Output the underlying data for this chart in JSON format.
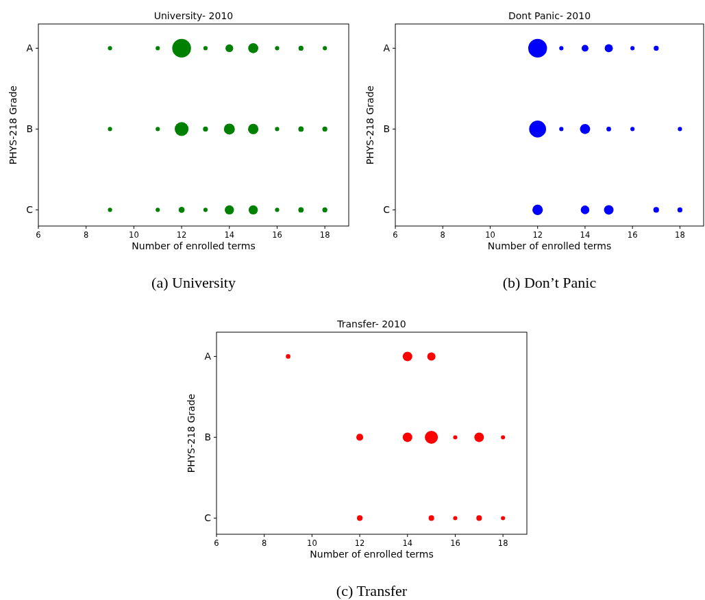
{
  "chart_data": [
    {
      "type": "bubble",
      "orientation": "horizontal",
      "title": "University- 2010",
      "xlabel": "Number of enrolled terms",
      "ylabel": "PHYS-218 Grade",
      "annotations": [
        "(a)  University"
      ],
      "xlim": [
        6,
        19
      ],
      "xticks": [
        6,
        8,
        10,
        12,
        14,
        16,
        18
      ],
      "categories": [
        "A",
        "B",
        "C"
      ],
      "series": [
        {
          "color": "#008000",
          "values": [
            9,
            9,
            9
          ],
          "sizes": [
            0.05,
            0.05,
            0.05
          ]
        },
        {
          "color": "#008000",
          "values": [
            11,
            11,
            11
          ],
          "sizes": [
            0.05,
            0.05,
            0.05
          ]
        },
        {
          "color": "#008000",
          "values": [
            12,
            12,
            12
          ],
          "sizes": [
            1,
            0.54,
            0.1
          ]
        },
        {
          "color": "#008000",
          "values": [
            13,
            13,
            13
          ],
          "sizes": [
            0.05,
            0.07,
            0.05
          ]
        },
        {
          "color": "#008000",
          "values": [
            14,
            14,
            14
          ],
          "sizes": [
            0.17,
            0.34,
            0.24
          ]
        },
        {
          "color": "#008000",
          "values": [
            15,
            15,
            15
          ],
          "sizes": [
            0.29,
            0.31,
            0.24
          ]
        },
        {
          "color": "#008000",
          "values": [
            16,
            16,
            16
          ],
          "sizes": [
            0.05,
            0.05,
            0.05
          ]
        },
        {
          "color": "#008000",
          "values": [
            17,
            17,
            17
          ],
          "sizes": [
            0.07,
            0.08,
            0.08
          ]
        },
        {
          "color": "#008000",
          "values": [
            18,
            18,
            18
          ],
          "sizes": [
            0.05,
            0.07,
            0.07
          ]
        }
      ]
    },
    {
      "type": "bubble",
      "orientation": "horizontal",
      "title": "Dont Panic- 2010",
      "xlabel": "Number of enrolled terms",
      "ylabel": "PHYS-218 Grade",
      "annotations": [
        "(b)  Don’t Panic"
      ],
      "xlim": [
        6,
        19
      ],
      "xticks": [
        6,
        8,
        10,
        12,
        14,
        16,
        18
      ],
      "categories": [
        "A",
        "B",
        "C"
      ],
      "series": [
        {
          "color": "#0000ff",
          "values": [
            12,
            12,
            12
          ],
          "sizes": [
            1,
            0.81,
            0.31
          ]
        },
        {
          "color": "#0000ff",
          "values": [
            13,
            13,
            null
          ],
          "sizes": [
            0.05,
            0.05,
            null
          ]
        },
        {
          "color": "#0000ff",
          "values": [
            14,
            14,
            14
          ],
          "sizes": [
            0.13,
            0.29,
            0.21
          ]
        },
        {
          "color": "#0000ff",
          "values": [
            15,
            15,
            15
          ],
          "sizes": [
            0.19,
            0.06,
            0.26
          ]
        },
        {
          "color": "#0000ff",
          "values": [
            16,
            16,
            null
          ],
          "sizes": [
            0.05,
            0.05,
            null
          ]
        },
        {
          "color": "#0000ff",
          "values": [
            17,
            null,
            17
          ],
          "sizes": [
            0.07,
            null,
            0.09
          ]
        },
        {
          "color": "#0000ff",
          "values": [
            null,
            18,
            18
          ],
          "sizes": [
            null,
            0.05,
            0.07
          ]
        }
      ]
    },
    {
      "type": "bubble",
      "orientation": "horizontal",
      "title": "Transfer- 2010",
      "xlabel": "Number of enrolled terms",
      "ylabel": "PHYS-218 Grade",
      "annotations": [
        "(c)  Transfer"
      ],
      "xlim": [
        6,
        19
      ],
      "xticks": [
        6,
        8,
        10,
        12,
        14,
        16,
        18
      ],
      "categories": [
        "A",
        "B",
        "C"
      ],
      "series": [
        {
          "color": "#ff0000",
          "values": [
            9,
            null,
            null
          ],
          "sizes": [
            0.12,
            null,
            null
          ]
        },
        {
          "color": "#ff0000",
          "values": [
            null,
            12,
            12
          ],
          "sizes": [
            null,
            0.28,
            0.18
          ]
        },
        {
          "color": "#ff0000",
          "values": [
            14,
            14,
            null
          ],
          "sizes": [
            0.54,
            0.54,
            null
          ]
        },
        {
          "color": "#ff0000",
          "values": [
            15,
            15,
            15
          ],
          "sizes": [
            0.4,
            1,
            0.18
          ]
        },
        {
          "color": "#ff0000",
          "values": [
            null,
            16,
            16
          ],
          "sizes": [
            null,
            0.1,
            0.1
          ]
        },
        {
          "color": "#ff0000",
          "values": [
            null,
            17,
            17
          ],
          "sizes": [
            null,
            0.54,
            0.18
          ]
        },
        {
          "color": "#ff0000",
          "values": [
            null,
            18,
            18
          ],
          "sizes": [
            null,
            0.1,
            0.1
          ]
        }
      ]
    }
  ]
}
